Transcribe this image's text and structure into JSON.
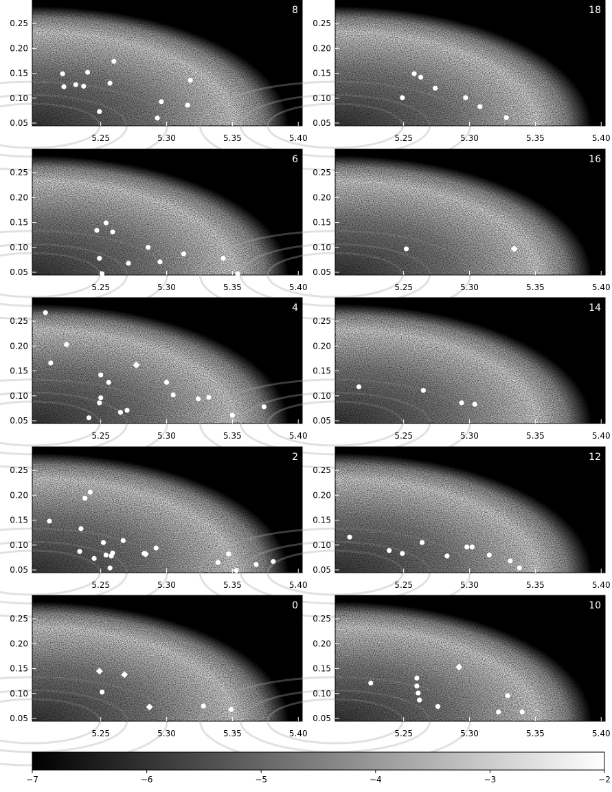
{
  "chart_data": [
    {
      "type": "scatter",
      "annotation": "8",
      "x": [
        5.221,
        5.222,
        5.231,
        5.237,
        5.24,
        5.257,
        5.26,
        5.249,
        5.293,
        5.296,
        5.316,
        5.318
      ],
      "y": [
        0.149,
        0.123,
        0.127,
        0.124,
        0.152,
        0.13,
        0.174,
        0.073,
        0.06,
        0.093,
        0.086,
        0.136
      ],
      "marker": [
        "circle",
        "circle",
        "circle",
        "circle",
        "circle",
        "circle",
        "circle",
        "circle",
        "circle",
        "circle",
        "circle",
        "circle"
      ],
      "xlim": [
        5.198,
        5.403
      ],
      "ylim": [
        0.0445,
        0.297
      ],
      "xticks": [
        5.25,
        {
          "value": 5.3,
          "label": "5.30"
        },
        5.35,
        {
          "value": 5.4,
          "label": "5.40"
        }
      ],
      "yticks": [
        0.05,
        {
          "value": 0.1,
          "label": "0.10"
        },
        0.15,
        {
          "value": 0.2,
          "label": "0.20"
        },
        0.25
      ]
    },
    {
      "type": "scatter",
      "annotation": "18",
      "x": [
        5.249,
        5.258,
        5.263,
        5.274,
        5.297,
        5.308,
        5.328
      ],
      "y": [
        0.101,
        0.149,
        0.142,
        0.12,
        0.101,
        0.083,
        0.061
      ],
      "marker": [
        "circle",
        "circle",
        "circle",
        "circle",
        "circle",
        "circle",
        "circle"
      ],
      "xlim": [
        5.198,
        5.403
      ],
      "ylim": [
        0.0445,
        0.297
      ],
      "xticks": [
        5.25,
        {
          "value": 5.3,
          "label": "5.30"
        },
        5.35,
        {
          "value": 5.4,
          "label": "5.40"
        }
      ],
      "yticks": [
        0.05,
        {
          "value": 0.1,
          "label": "0.10"
        },
        0.15,
        {
          "value": 0.2,
          "label": "0.20"
        },
        0.25
      ]
    },
    {
      "type": "scatter",
      "annotation": "6",
      "x": [
        5.254,
        5.247,
        5.259,
        5.249,
        5.286,
        5.271,
        5.295,
        5.313,
        5.343,
        5.251,
        5.354
      ],
      "y": [
        0.149,
        0.134,
        0.131,
        0.078,
        0.1,
        0.068,
        0.071,
        0.087,
        0.078,
        0.047,
        0.047
      ],
      "marker": [
        "circle",
        "circle",
        "circle",
        "circle",
        "circle",
        "circle",
        "circle",
        "circle",
        "circle",
        "circle",
        "circle"
      ],
      "xlim": [
        5.198,
        5.403
      ],
      "ylim": [
        0.0445,
        0.297
      ],
      "xticks": [
        5.25,
        {
          "value": 5.3,
          "label": "5.30"
        },
        5.35,
        {
          "value": 5.4,
          "label": "5.40"
        }
      ],
      "yticks": [
        0.05,
        {
          "value": 0.1,
          "label": "0.10"
        },
        0.15,
        {
          "value": 0.2,
          "label": "0.20"
        },
        0.25
      ]
    },
    {
      "type": "scatter",
      "annotation": "16",
      "x": [
        5.252,
        5.334
      ],
      "y": [
        0.097,
        0.097
      ],
      "marker": [
        "circle",
        "diamond"
      ],
      "xlim": [
        5.198,
        5.403
      ],
      "ylim": [
        0.0445,
        0.297
      ],
      "xticks": [
        5.25,
        {
          "value": 5.3,
          "label": "5.30"
        },
        5.35,
        {
          "value": 5.4,
          "label": "5.40"
        }
      ],
      "yticks": [
        0.05,
        {
          "value": 0.1,
          "label": "0.10"
        },
        0.15,
        {
          "value": 0.2,
          "label": "0.20"
        },
        0.25
      ]
    },
    {
      "type": "scatter",
      "annotation": "4",
      "x": [
        5.208,
        5.224,
        5.212,
        5.277,
        5.25,
        5.256,
        5.3,
        5.305,
        5.25,
        5.249,
        5.324,
        5.332,
        5.27,
        5.265,
        5.241,
        5.35,
        5.374
      ],
      "y": [
        0.267,
        0.203,
        0.166,
        0.162,
        0.142,
        0.127,
        0.127,
        0.102,
        0.096,
        0.086,
        0.094,
        0.097,
        0.071,
        0.067,
        0.056,
        0.061,
        0.078
      ],
      "marker": [
        "circle",
        "circle",
        "circle",
        "diamond",
        "circle",
        "circle",
        "circle",
        "circle",
        "circle",
        "circle",
        "circle",
        "circle",
        "circle",
        "circle",
        "circle",
        "circle",
        "circle"
      ],
      "xlim": [
        5.198,
        5.403
      ],
      "ylim": [
        0.0445,
        0.297
      ],
      "xticks": [
        5.25,
        {
          "value": 5.3,
          "label": "5.30"
        },
        5.35,
        {
          "value": 5.4,
          "label": "5.40"
        }
      ],
      "yticks": [
        0.05,
        {
          "value": 0.1,
          "label": "0.10"
        },
        0.15,
        {
          "value": 0.2,
          "label": "0.20"
        },
        0.25
      ]
    },
    {
      "type": "scatter",
      "annotation": "14",
      "x": [
        5.216,
        5.265,
        5.294,
        5.304
      ],
      "y": [
        0.118,
        0.111,
        0.086,
        0.083
      ],
      "marker": [
        "circle",
        "circle",
        "circle",
        "circle"
      ],
      "xlim": [
        5.198,
        5.403
      ],
      "ylim": [
        0.0445,
        0.297
      ],
      "xticks": [
        5.25,
        {
          "value": 5.3,
          "label": "5.30"
        },
        5.35,
        {
          "value": 5.4,
          "label": "5.40"
        }
      ],
      "yticks": [
        0.05,
        {
          "value": 0.1,
          "label": "0.10"
        },
        0.15,
        {
          "value": 0.2,
          "label": "0.20"
        },
        0.25
      ]
    },
    {
      "type": "scatter",
      "annotation": "2",
      "x": [
        5.211,
        5.242,
        5.238,
        5.235,
        5.234,
        5.252,
        5.267,
        5.245,
        5.254,
        5.259,
        5.258,
        5.257,
        5.283,
        5.284,
        5.292,
        5.339,
        5.347,
        5.353,
        5.368,
        5.381
      ],
      "y": [
        0.148,
        0.206,
        0.194,
        0.133,
        0.087,
        0.105,
        0.109,
        0.073,
        0.08,
        0.084,
        0.078,
        0.054,
        0.083,
        0.082,
        0.094,
        0.065,
        0.082,
        0.049,
        0.061,
        0.067
      ],
      "marker": [
        "circle",
        "circle",
        "circle",
        "circle",
        "circle",
        "circle",
        "circle",
        "circle",
        "circle",
        "circle",
        "circle",
        "circle",
        "circle",
        "diamond",
        "circle",
        "circle",
        "circle",
        "circle",
        "circle",
        "circle"
      ],
      "xlim": [
        5.198,
        5.403
      ],
      "ylim": [
        0.0445,
        0.297
      ],
      "xticks": [
        5.25,
        {
          "value": 5.3,
          "label": "5.30"
        },
        5.35,
        {
          "value": 5.4,
          "label": "5.40"
        }
      ],
      "yticks": [
        0.05,
        {
          "value": 0.1,
          "label": "0.10"
        },
        0.15,
        {
          "value": 0.2,
          "label": "0.20"
        },
        0.25
      ]
    },
    {
      "type": "scatter",
      "annotation": "12",
      "x": [
        5.209,
        5.239,
        5.249,
        5.264,
        5.283,
        5.298,
        5.302,
        5.315,
        5.331,
        5.338
      ],
      "y": [
        0.116,
        0.089,
        0.083,
        0.105,
        0.078,
        0.096,
        0.096,
        0.08,
        0.068,
        0.054
      ],
      "marker": [
        "circle",
        "circle",
        "circle",
        "circle",
        "circle",
        "circle",
        "circle",
        "circle",
        "circle",
        "circle"
      ],
      "xlim": [
        5.198,
        5.403
      ],
      "ylim": [
        0.0445,
        0.297
      ],
      "xticks": [
        5.25,
        {
          "value": 5.3,
          "label": "5.30"
        },
        5.35,
        {
          "value": 5.4,
          "label": "5.40"
        }
      ],
      "yticks": [
        0.05,
        {
          "value": 0.1,
          "label": "0.10"
        },
        0.15,
        {
          "value": 0.2,
          "label": "0.20"
        },
        0.25
      ]
    },
    {
      "type": "scatter",
      "annotation": "0",
      "x": [
        5.249,
        5.268,
        5.251,
        5.287,
        5.328,
        5.349
      ],
      "y": [
        0.145,
        0.138,
        0.103,
        0.073,
        0.075,
        0.068
      ],
      "marker": [
        "diamond",
        "diamond",
        "circle",
        "diamond",
        "circle",
        "circle"
      ],
      "xlim": [
        5.198,
        5.403
      ],
      "ylim": [
        0.0445,
        0.297
      ],
      "xticks": [
        5.25,
        {
          "value": 5.3,
          "label": "5.30"
        },
        5.35,
        {
          "value": 5.4,
          "label": "5.40"
        }
      ],
      "yticks": [
        0.05,
        {
          "value": 0.1,
          "label": "0.10"
        },
        0.15,
        {
          "value": 0.2,
          "label": "0.20"
        },
        0.25
      ]
    },
    {
      "type": "scatter",
      "annotation": "10",
      "x": [
        5.225,
        5.26,
        5.26,
        5.261,
        5.262,
        5.276,
        5.292,
        5.322,
        5.329,
        5.34
      ],
      "y": [
        0.121,
        0.131,
        0.115,
        0.101,
        0.087,
        0.074,
        0.153,
        0.063,
        0.096,
        0.063
      ],
      "marker": [
        "circle",
        "circle",
        "circle",
        "circle",
        "circle",
        "circle",
        "diamond",
        "circle",
        "circle",
        "circle"
      ],
      "xlim": [
        5.198,
        5.403
      ],
      "ylim": [
        0.0445,
        0.297
      ],
      "xticks": [
        5.25,
        {
          "value": 5.3,
          "label": "5.30"
        },
        5.35,
        {
          "value": 5.4,
          "label": "5.40"
        }
      ],
      "yticks": [
        0.05,
        {
          "value": 0.1,
          "label": "0.10"
        },
        0.15,
        {
          "value": 0.2,
          "label": "0.20"
        },
        0.25
      ]
    },
    {
      "type": "colorbar",
      "colors": [
        "#000000",
        "#ffffff"
      ],
      "xlim": [
        -7,
        -2
      ],
      "xticks": [
        {
          "value": -7,
          "label": "−7"
        },
        {
          "value": -6,
          "label": "−6"
        },
        {
          "value": -5,
          "label": "−5"
        },
        {
          "value": -4,
          "label": "−4"
        },
        {
          "value": -3,
          "label": "−3"
        },
        {
          "value": -2,
          "label": "−2"
        }
      ]
    }
  ]
}
